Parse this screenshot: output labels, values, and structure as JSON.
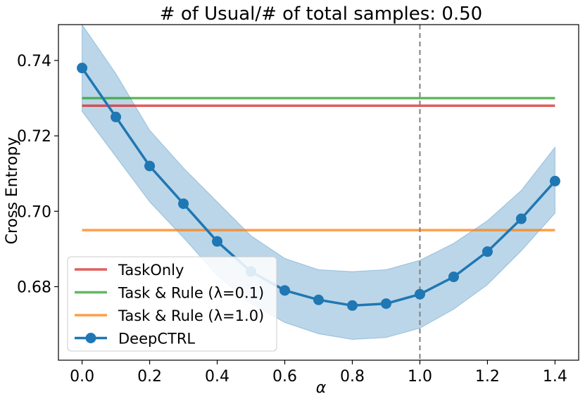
{
  "chart_data": {
    "type": "line",
    "title": "# of Usual/# of total samples: 0.50",
    "xlabel": "α",
    "ylabel": "Cross Entropy",
    "xlim": [
      -0.07,
      1.47
    ],
    "ylim": [
      0.6605,
      0.7495
    ],
    "x_ticks": [
      0.0,
      0.2,
      0.4,
      0.6,
      0.8,
      1.0,
      1.2,
      1.4
    ],
    "x_tick_labels": [
      "0.0",
      "0.2",
      "0.4",
      "0.6",
      "0.8",
      "1.0",
      "1.2",
      "1.4"
    ],
    "y_ticks": [
      0.68,
      0.7,
      0.72,
      0.74
    ],
    "y_tick_labels": [
      "0.68",
      "0.70",
      "0.72",
      "0.74"
    ],
    "grid": false,
    "legend_position": "lower-left",
    "vertical_reference_line": {
      "x": 1.0,
      "style": "dashed",
      "color": "#7f7f7f"
    },
    "horizontal_series": [
      {
        "name": "TaskOnly",
        "y": 0.728,
        "color": "#d62728"
      },
      {
        "name": "Task & Rule (λ=0.1)",
        "y": 0.73,
        "color": "#2ca02c"
      },
      {
        "name": "Task & Rule (λ=1.0)",
        "y": 0.695,
        "color": "#ff7f0e"
      }
    ],
    "series": [
      {
        "name": "DeepCTRL",
        "color": "#1f77b4",
        "x": [
          0.0,
          0.1,
          0.2,
          0.3,
          0.4,
          0.5,
          0.6,
          0.7,
          0.8,
          0.9,
          1.0,
          1.1,
          1.2,
          1.3,
          1.4
        ],
        "values": [
          0.738,
          0.725,
          0.712,
          0.702,
          0.692,
          0.684,
          0.679,
          0.6765,
          0.675,
          0.6755,
          0.678,
          0.6826,
          0.6893,
          0.698,
          0.708
        ],
        "band_upper": [
          0.7495,
          0.7365,
          0.7215,
          0.7115,
          0.7025,
          0.6935,
          0.6875,
          0.6845,
          0.684,
          0.6845,
          0.687,
          0.6915,
          0.6975,
          0.7055,
          0.717
        ],
        "band_lower": [
          0.7265,
          0.7145,
          0.7025,
          0.693,
          0.683,
          0.6755,
          0.6705,
          0.6675,
          0.666,
          0.6665,
          0.669,
          0.674,
          0.6805,
          0.6895,
          0.6995
        ]
      }
    ]
  }
}
